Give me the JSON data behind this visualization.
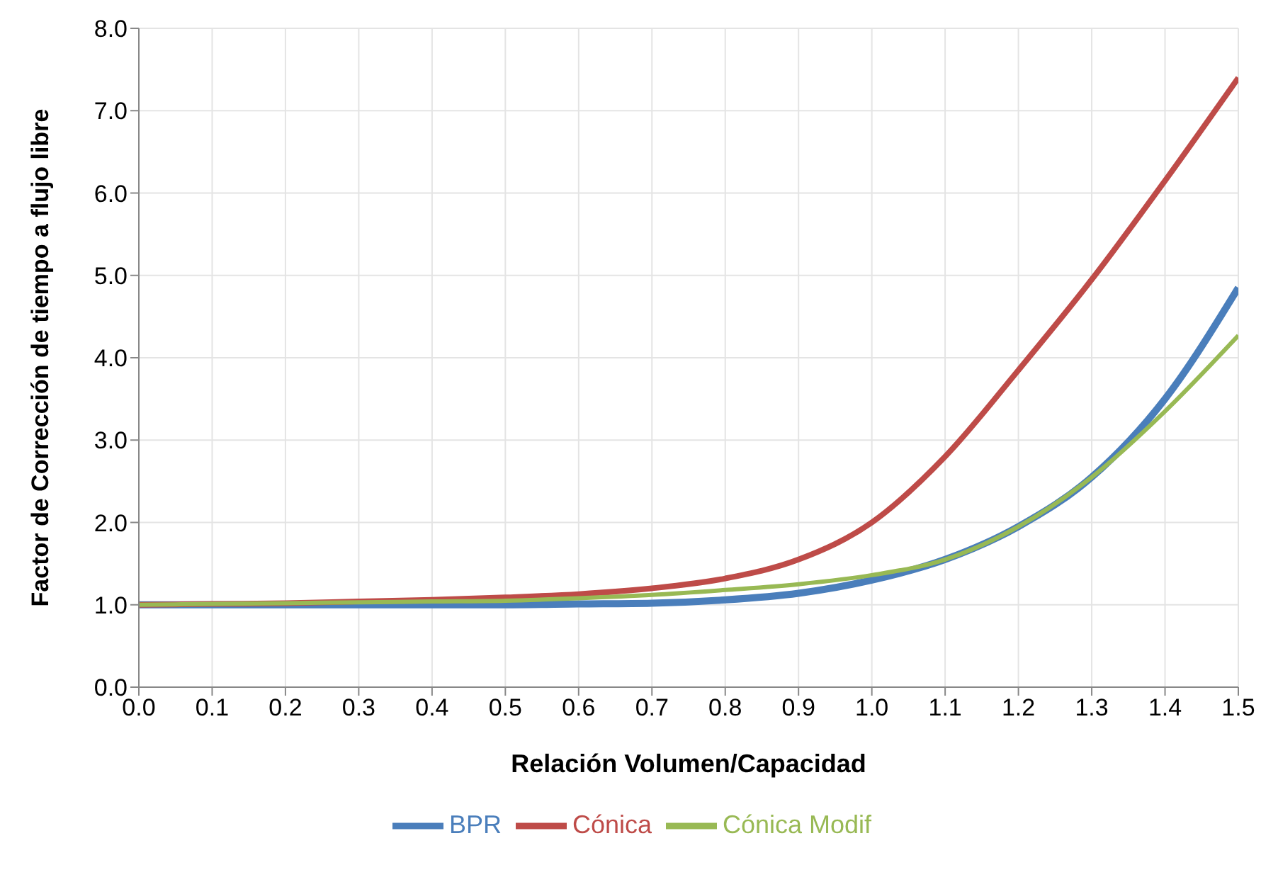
{
  "chart_data": {
    "type": "line",
    "xlabel": "Relación Volumen/Capacidad",
    "ylabel": "Factor de Corrección de tiempo a flujo libre",
    "x": [
      0,
      0.1,
      0.2,
      0.3,
      0.4,
      0.5,
      0.6,
      0.7,
      0.8,
      0.9,
      1.0,
      1.1,
      1.2,
      1.3,
      1.4,
      1.5
    ],
    "series": [
      {
        "name": "BPR",
        "color": "#4a7ebb",
        "values": [
          1.0,
          1.0,
          1.0,
          1.0,
          1.0,
          1.0,
          1.01,
          1.02,
          1.06,
          1.14,
          1.3,
          1.55,
          1.95,
          2.55,
          3.5,
          4.85
        ]
      },
      {
        "name": "Cónica",
        "color": "#be4b48",
        "values": [
          1.0,
          1.01,
          1.02,
          1.04,
          1.06,
          1.09,
          1.13,
          1.2,
          1.32,
          1.55,
          2.0,
          2.8,
          3.85,
          4.95,
          6.15,
          7.4
        ]
      },
      {
        "name": "Cónica Modif",
        "color": "#98b954",
        "values": [
          1.0,
          1.01,
          1.02,
          1.03,
          1.04,
          1.05,
          1.08,
          1.12,
          1.18,
          1.25,
          1.36,
          1.55,
          1.95,
          2.55,
          3.35,
          4.27
        ]
      }
    ],
    "xlim": [
      0,
      1.5
    ],
    "xticks": [
      {
        "value": 0,
        "label": "0.0"
      },
      {
        "value": 0.1,
        "label": "0.1"
      },
      {
        "value": 0.2,
        "label": "0.2"
      },
      {
        "value": 0.3,
        "label": "0.3"
      },
      {
        "value": 0.4,
        "label": "0.4"
      },
      {
        "value": 0.5,
        "label": "0.5"
      },
      {
        "value": 0.6,
        "label": "0.6"
      },
      {
        "value": 0.7,
        "label": "0.7"
      },
      {
        "value": 0.8,
        "label": "0.8"
      },
      {
        "value": 0.9,
        "label": "0.9"
      },
      {
        "value": 1.0,
        "label": "1.0"
      },
      {
        "value": 1.1,
        "label": "1.1"
      },
      {
        "value": 1.2,
        "label": "1.2"
      },
      {
        "value": 1.3,
        "label": "1.3"
      },
      {
        "value": 1.4,
        "label": "1.4"
      },
      {
        "value": 1.5,
        "label": "1.5"
      }
    ],
    "ylim": [
      0,
      8
    ],
    "yticks": [
      {
        "value": 0,
        "label": "0.0"
      },
      {
        "value": 1,
        "label": "1.0"
      },
      {
        "value": 2,
        "label": "2.0"
      },
      {
        "value": 3,
        "label": "3.0"
      },
      {
        "value": 4,
        "label": "4.0"
      },
      {
        "value": 5,
        "label": "5.0"
      },
      {
        "value": 6,
        "label": "6.0"
      },
      {
        "value": 7,
        "label": "7.0"
      },
      {
        "value": 8,
        "label": "8.0"
      }
    ],
    "grid": true,
    "legend": "bottom",
    "marker": "none",
    "line_style": "solid"
  }
}
